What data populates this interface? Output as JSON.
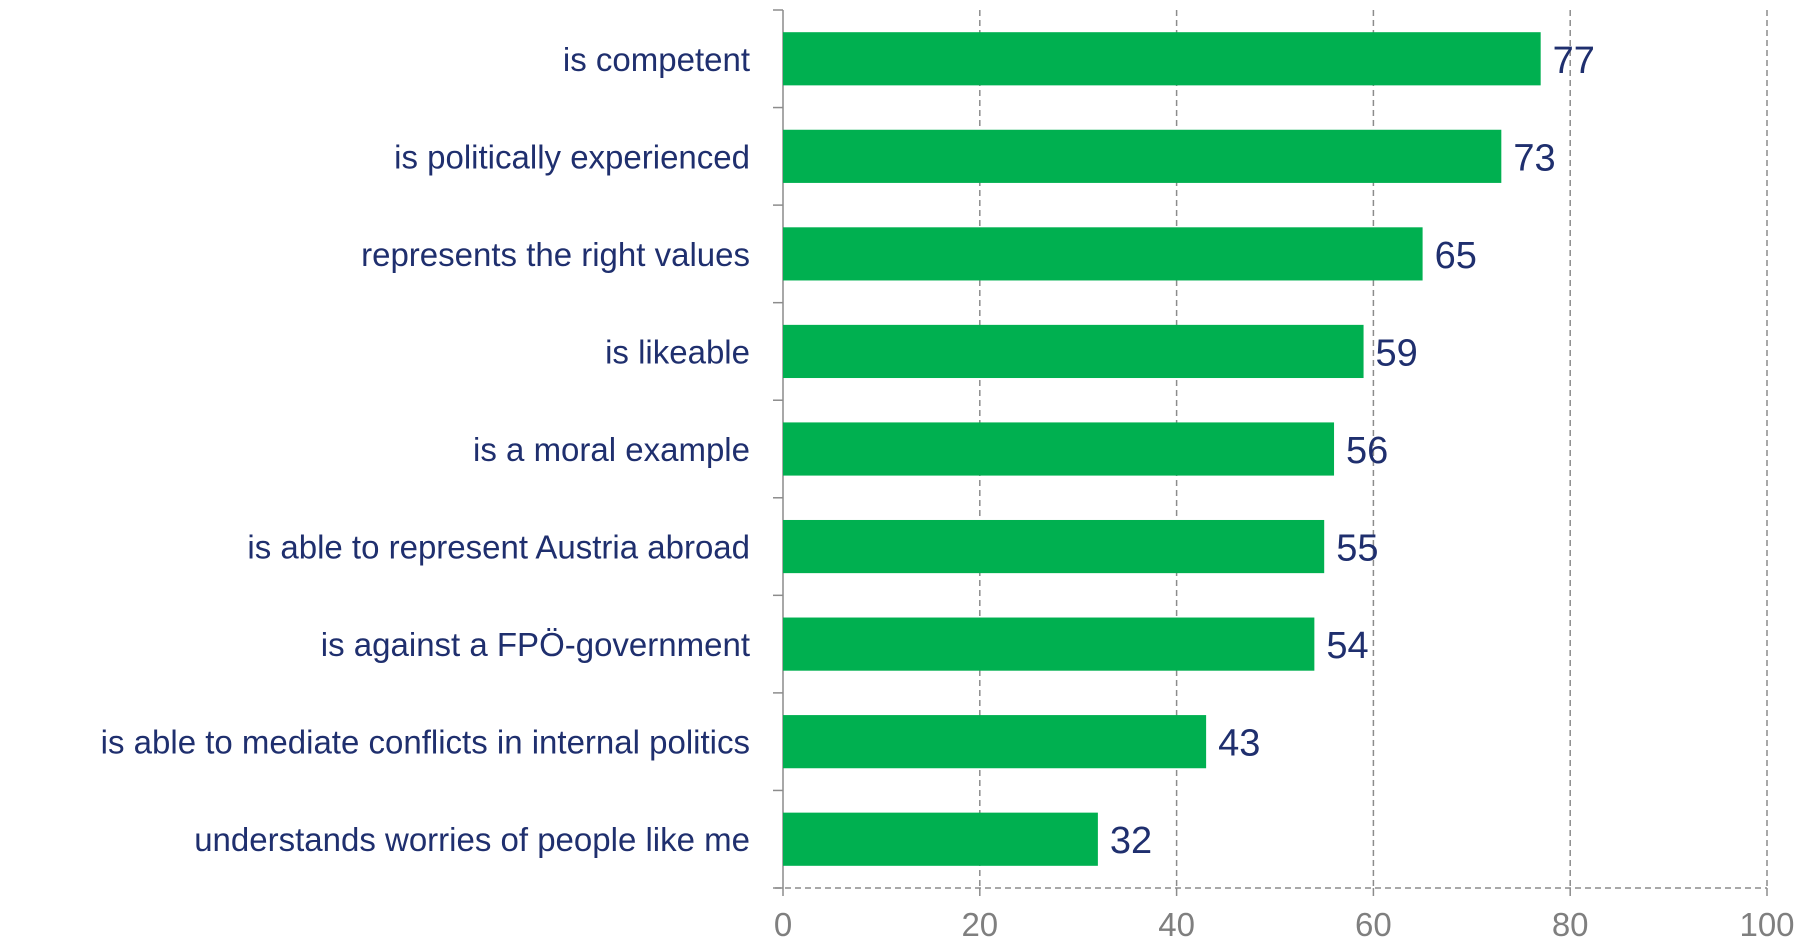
{
  "chart_data": {
    "type": "bar",
    "orientation": "horizontal",
    "categories": [
      "is competent",
      "is politically experienced",
      "represents the right values",
      "is likeable",
      "is a moral example",
      "is able to represent Austria abroad ",
      "is against a FPÖ-government",
      "is able to mediate conflicts in internal politics",
      "understands worries of people like me"
    ],
    "values": [
      77,
      73,
      65,
      59,
      56,
      55,
      54,
      43,
      32
    ],
    "xlim": [
      0,
      100
    ],
    "xticks": [
      0,
      20,
      40,
      60,
      80,
      100
    ],
    "grid": "vertical-dashed",
    "colors": {
      "bar": "#00b050",
      "label": "#1f2f6e",
      "tick": "#7f7f7f",
      "grid": "#8c8c8c"
    }
  }
}
